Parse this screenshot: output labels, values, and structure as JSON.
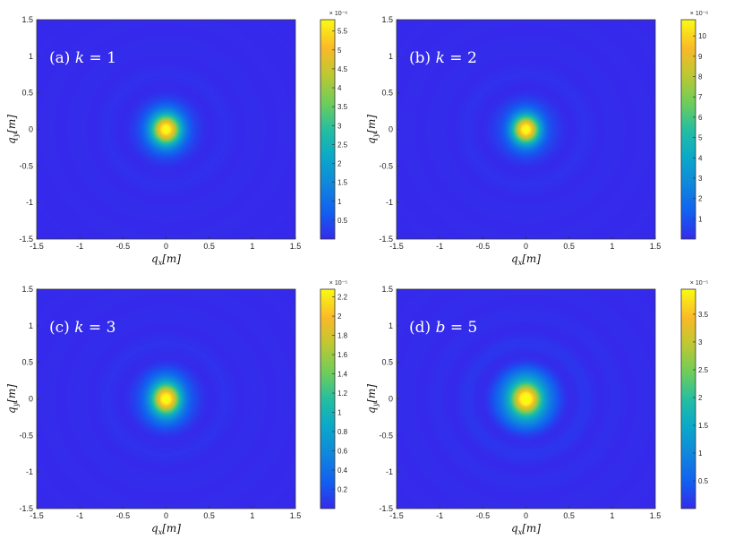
{
  "chart_data": [
    {
      "type": "heatmap",
      "title": "(a) k = 1",
      "title_parts": {
        "prefix": "(a)",
        "var": "k",
        "eq": "=",
        "value": "1"
      },
      "xlabel": {
        "base": "q",
        "sub": "x",
        "unit": "[m]"
      },
      "ylabel": {
        "base": "q",
        "sub": "y",
        "unit": "[m]"
      },
      "xlim": [
        -1.5,
        1.5
      ],
      "ylim": [
        -1.5,
        1.5
      ],
      "xticks": [
        "-1.5",
        "-1",
        "-0.5",
        "0",
        "0.5",
        "1",
        "1.5"
      ],
      "yticks": [
        "-1.5",
        "-1",
        "-0.5",
        "0",
        "0.5",
        "1",
        "1.5"
      ],
      "colorbar": {
        "multiplier": "× 10⁻⁶",
        "range": [
          0,
          5.8
        ],
        "ticks": [
          0.5,
          1,
          1.5,
          2,
          2.5,
          3,
          3.5,
          4,
          4.5,
          5,
          5.5
        ],
        "tick_labels": [
          "0.5",
          "1",
          "1.5",
          "2",
          "2.5",
          "3",
          "3.5",
          "4",
          "4.5",
          "5",
          "5.5"
        ]
      },
      "peak": {
        "x": 0,
        "y": 0,
        "value": 5.8
      },
      "spread": {
        "sx": 0.13,
        "sy": 0.16
      },
      "ripple": 0.06,
      "colormap": "parula"
    },
    {
      "type": "heatmap",
      "title": "(b) k = 2",
      "title_parts": {
        "prefix": "(b)",
        "var": "k",
        "eq": "=",
        "value": "2"
      },
      "xlabel": {
        "base": "q",
        "sub": "x",
        "unit": "[m]"
      },
      "ylabel": {
        "base": "q",
        "sub": "y",
        "unit": "[m]"
      },
      "xlim": [
        -1.5,
        1.5
      ],
      "ylim": [
        -1.5,
        1.5
      ],
      "xticks": [
        "-1.5",
        "-1",
        "-0.5",
        "0",
        "0.5",
        "1",
        "1.5"
      ],
      "yticks": [
        "-1.5",
        "-1",
        "-0.5",
        "0",
        "0.5",
        "1",
        "1.5"
      ],
      "colorbar": {
        "multiplier": "× 10⁻⁶",
        "range": [
          0,
          10.8
        ],
        "ticks": [
          1,
          2,
          3,
          4,
          5,
          6,
          7,
          8,
          9,
          10
        ],
        "tick_labels": [
          "1",
          "2",
          "3",
          "4",
          "5",
          "6",
          "7",
          "8",
          "9",
          "10"
        ]
      },
      "peak": {
        "x": 0,
        "y": 0,
        "value": 10.8
      },
      "spread": {
        "sx": 0.12,
        "sy": 0.15
      },
      "ripple": 0.07,
      "colormap": "parula"
    },
    {
      "type": "heatmap",
      "title": "(c) k = 3",
      "title_parts": {
        "prefix": "(c)",
        "var": "k",
        "eq": "=",
        "value": "3"
      },
      "xlabel": {
        "base": "q",
        "sub": "x",
        "unit": "[m]"
      },
      "ylabel": {
        "base": "q",
        "sub": "y",
        "unit": "[m]"
      },
      "xlim": [
        -1.5,
        1.5
      ],
      "ylim": [
        -1.5,
        1.5
      ],
      "xticks": [
        "-1.5",
        "-1",
        "-0.5",
        "0",
        "0.5",
        "1",
        "1.5"
      ],
      "yticks": [
        "-1.5",
        "-1",
        "-0.5",
        "0",
        "0.5",
        "1",
        "1.5"
      ],
      "colorbar": {
        "multiplier": "× 10⁻⁵",
        "range": [
          0,
          2.28
        ],
        "ticks": [
          0.2,
          0.4,
          0.6,
          0.8,
          1,
          1.2,
          1.4,
          1.6,
          1.8,
          2,
          2.2
        ],
        "tick_labels": [
          "0.2",
          "0.4",
          "0.6",
          "0.8",
          "1",
          "1.2",
          "1.4",
          "1.6",
          "1.8",
          "2",
          "2.2"
        ]
      },
      "peak": {
        "x": 0,
        "y": 0,
        "value": 2.28
      },
      "spread": {
        "sx": 0.13,
        "sy": 0.17
      },
      "ripple": 0.08,
      "colormap": "parula"
    },
    {
      "type": "heatmap",
      "title": "(d) b = 5",
      "title_parts": {
        "prefix": "(d)",
        "var": "b",
        "eq": "=",
        "value": "5"
      },
      "xlabel": {
        "base": "q",
        "sub": "x",
        "unit": "[m]"
      },
      "ylabel": {
        "base": "q",
        "sub": "y",
        "unit": "[m]"
      },
      "xlim": [
        -1.5,
        1.5
      ],
      "ylim": [
        -1.5,
        1.5
      ],
      "xticks": [
        "-1.5",
        "-1",
        "-0.5",
        "0",
        "0.5",
        "1",
        "1.5"
      ],
      "yticks": [
        "-1.5",
        "-1",
        "-0.5",
        "0",
        "0.5",
        "1",
        "1.5"
      ],
      "colorbar": {
        "multiplier": "× 10⁻⁵",
        "range": [
          0,
          3.95
        ],
        "ticks": [
          0.5,
          1,
          1.5,
          2,
          2.5,
          3,
          3.5
        ],
        "tick_labels": [
          "0.5",
          "1",
          "1.5",
          "2",
          "2.5",
          "3",
          "3.5"
        ]
      },
      "peak": {
        "x": 0,
        "y": 0,
        "value": 3.95
      },
      "spread": {
        "sx": 0.15,
        "sy": 0.19
      },
      "ripple": 0.12,
      "colormap": "parula"
    }
  ]
}
